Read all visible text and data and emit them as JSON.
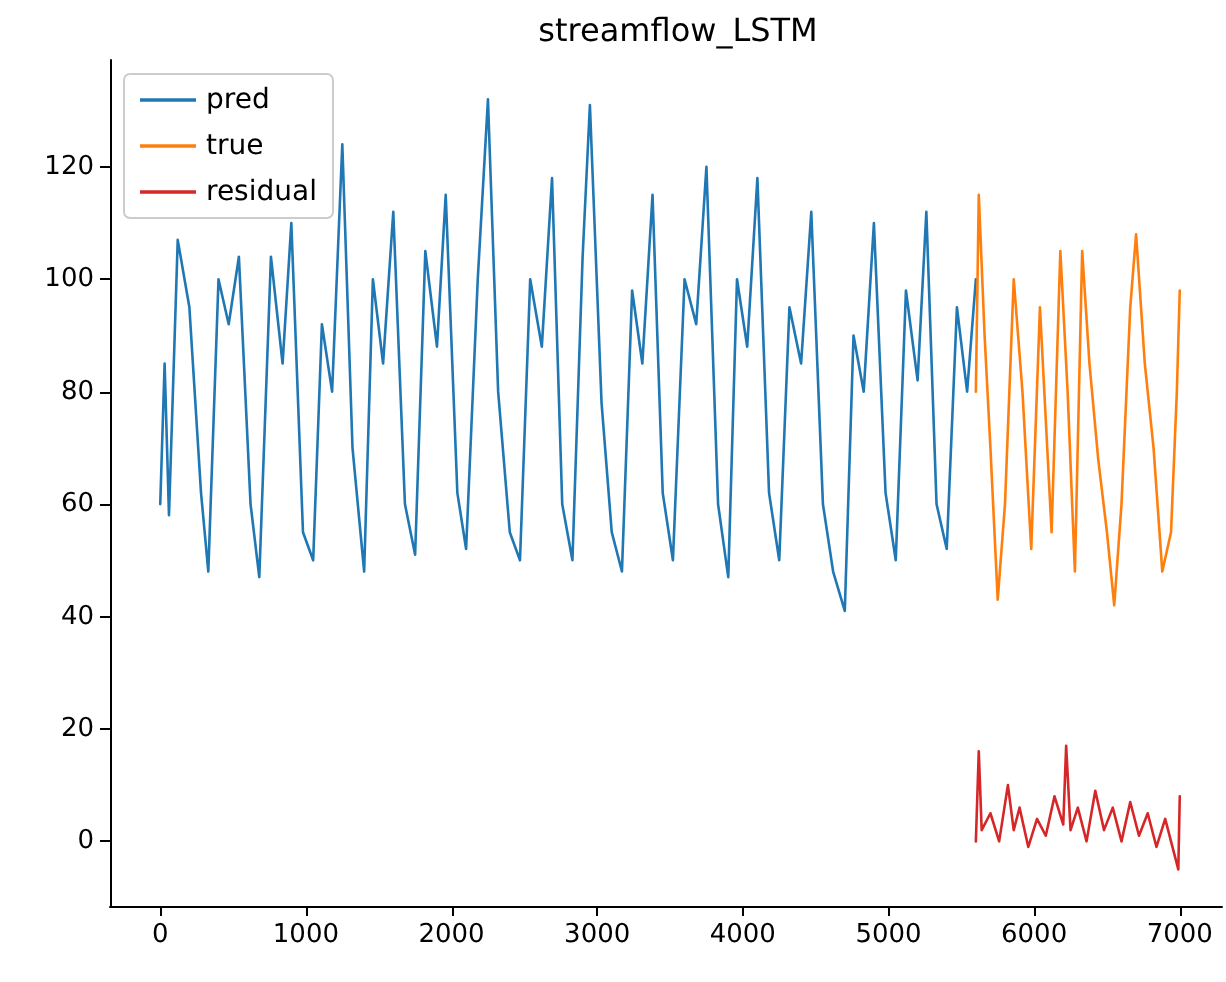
{
  "chart_data": {
    "type": "line",
    "title": "streamflow_LSTM",
    "legend": "top left",
    "grid": false,
    "marker": "none",
    "line_style": "solid",
    "xlim": [
      -345,
      7290
    ],
    "xticks": [
      0,
      1000,
      2000,
      3000,
      4000,
      5000,
      6000,
      7000
    ],
    "ylim": [
      -11.5,
      139
    ],
    "yticks": [
      0,
      20,
      40,
      60,
      80,
      100,
      120
    ],
    "series": [
      {
        "name": "pred",
        "color": "#1f77b4",
        "x": [
          0,
          30,
          60,
          120,
          200,
          280,
          330,
          400,
          470,
          540,
          620,
          680,
          760,
          840,
          900,
          980,
          1050,
          1110,
          1180,
          1250,
          1320,
          1400,
          1460,
          1530,
          1600,
          1680,
          1750,
          1820,
          1900,
          1960,
          2040,
          2100,
          2180,
          2250,
          2320,
          2400,
          2470,
          2540,
          2620,
          2690,
          2760,
          2830,
          2900,
          2950,
          3030,
          3100,
          3170,
          3240,
          3310,
          3380,
          3450,
          3520,
          3600,
          3680,
          3750,
          3830,
          3900,
          3960,
          4030,
          4100,
          4180,
          4250,
          4320,
          4400,
          4470,
          4550,
          4620,
          4700,
          4760,
          4830,
          4900,
          4980,
          5050,
          5120,
          5200,
          5260,
          5330,
          5400,
          5470,
          5540,
          5600
        ],
        "values": [
          60,
          85,
          58,
          107,
          95,
          62,
          48,
          100,
          92,
          104,
          60,
          47,
          104,
          85,
          110,
          55,
          50,
          92,
          80,
          124,
          70,
          48,
          100,
          85,
          112,
          60,
          51,
          105,
          88,
          115,
          62,
          52,
          100,
          132,
          80,
          55,
          50,
          100,
          88,
          118,
          60,
          50,
          104,
          131,
          78,
          55,
          48,
          98,
          85,
          115,
          62,
          50,
          100,
          92,
          120,
          60,
          47,
          100,
          88,
          118,
          62,
          50,
          95,
          85,
          112,
          60,
          48,
          41,
          90,
          80,
          110,
          62,
          50,
          98,
          82,
          112,
          60,
          52,
          95,
          80,
          100
        ]
      },
      {
        "name": "true",
        "color": "#ff7f0e",
        "x": [
          5600,
          5620,
          5660,
          5700,
          5750,
          5800,
          5860,
          5920,
          5980,
          6040,
          6080,
          6120,
          6180,
          6230,
          6280,
          6330,
          6380,
          6440,
          6500,
          6550,
          6600,
          6660,
          6700,
          6760,
          6820,
          6880,
          6940,
          6980,
          7000
        ],
        "values": [
          80,
          115,
          90,
          70,
          43,
          60,
          100,
          80,
          52,
          95,
          75,
          55,
          105,
          80,
          48,
          105,
          85,
          68,
          55,
          42,
          60,
          95,
          108,
          85,
          70,
          48,
          55,
          80,
          98
        ]
      },
      {
        "name": "residual",
        "color": "#d62728",
        "x": [
          5600,
          5620,
          5640,
          5700,
          5760,
          5820,
          5860,
          5900,
          5960,
          6020,
          6080,
          6140,
          6200,
          6220,
          6250,
          6300,
          6360,
          6420,
          6480,
          6540,
          6600,
          6660,
          6720,
          6780,
          6840,
          6900,
          6960,
          6990,
          7000
        ],
        "values": [
          0,
          16,
          2,
          5,
          0,
          10,
          2,
          6,
          -1,
          4,
          1,
          8,
          3,
          17,
          2,
          6,
          0,
          9,
          2,
          6,
          0,
          7,
          1,
          5,
          -1,
          4,
          -2,
          -5,
          8
        ]
      }
    ]
  }
}
